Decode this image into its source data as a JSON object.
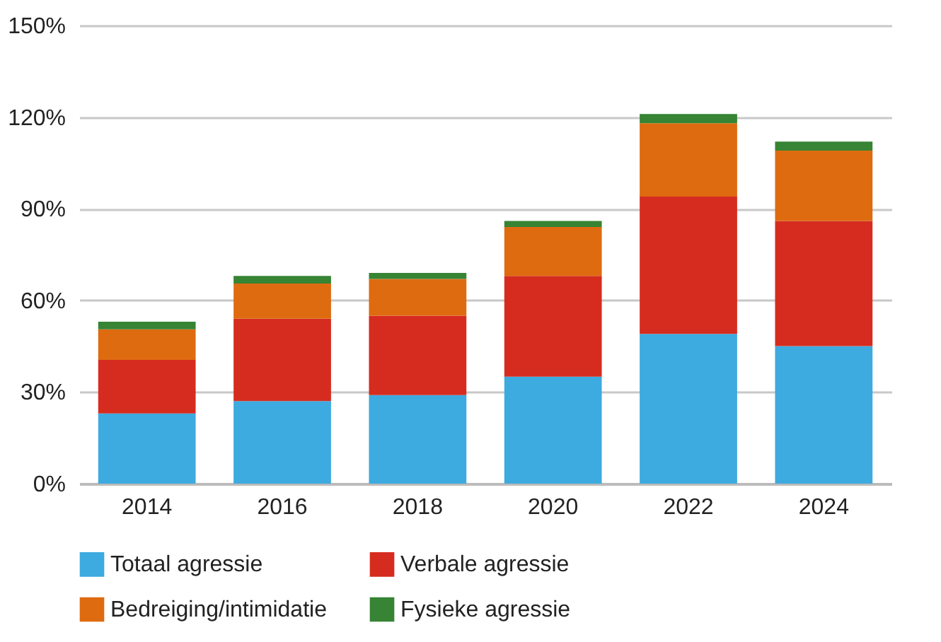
{
  "chart_data": {
    "type": "bar",
    "stacked": true,
    "categories": [
      "2014",
      "2016",
      "2018",
      "2020",
      "2022",
      "2024"
    ],
    "series": [
      {
        "name": "Totaal agressie",
        "color": "#3daae0",
        "values": [
          23,
          27,
          29,
          35,
          49,
          45
        ]
      },
      {
        "name": "Verbale agressie",
        "color": "#d62c1f",
        "values": [
          17.5,
          27,
          26,
          33,
          45,
          41
        ]
      },
      {
        "name": "Bedreiging/intimidatie",
        "color": "#de6b10",
        "values": [
          10,
          11.5,
          12,
          16,
          24,
          23
        ]
      },
      {
        "name": "Fysieke agressie",
        "color": "#368434",
        "values": [
          2.5,
          2.5,
          2,
          2,
          3,
          3
        ]
      }
    ],
    "ylim": [
      0,
      150
    ],
    "yticks": [
      {
        "value": 0,
        "label": "0%"
      },
      {
        "value": 30,
        "label": "30%"
      },
      {
        "value": 60,
        "label": "60%"
      },
      {
        "value": 90,
        "label": "90%"
      },
      {
        "value": 120,
        "label": "120%"
      },
      {
        "value": 150,
        "label": "150%"
      }
    ],
    "grid": "y",
    "legend": "bottom"
  }
}
